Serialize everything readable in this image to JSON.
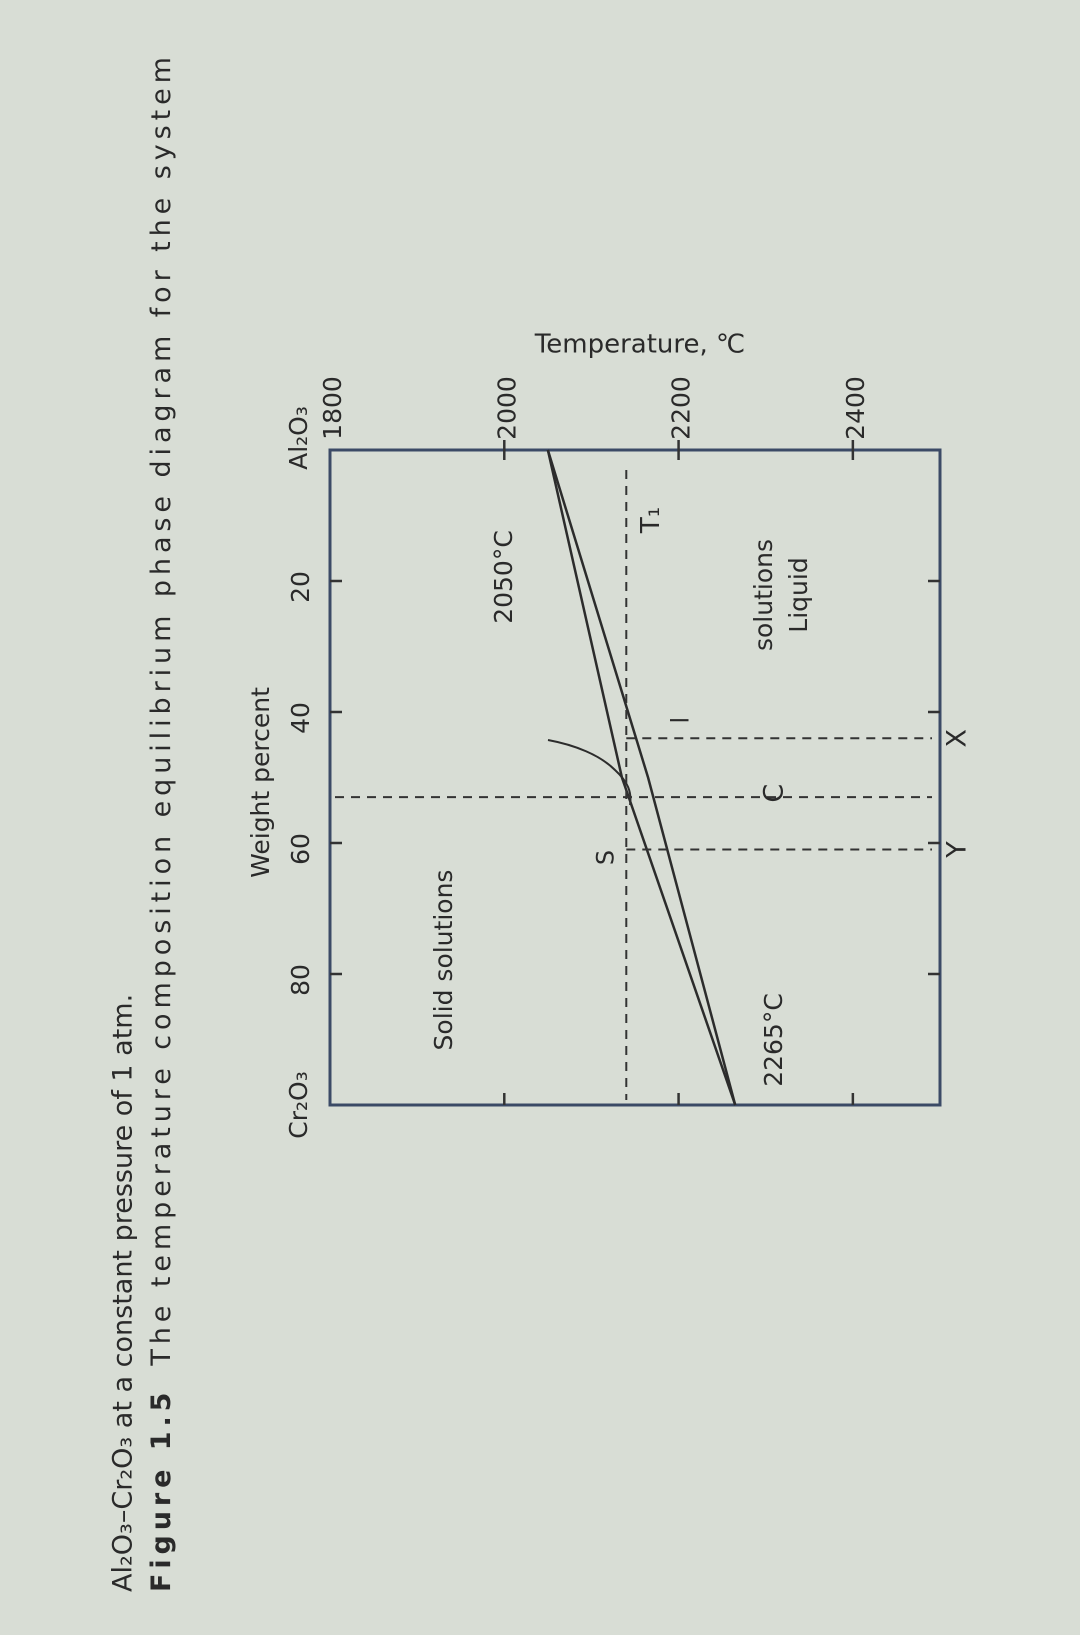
{
  "chart_data": {
    "type": "line",
    "title_label": "Figure 1.5",
    "title": [
      "The temperature composition equilibrium phase diagram for the system",
      "Al₂O₃–Cr₂O₃ at a constant pressure of 1 atm."
    ],
    "xlabel": "Weight percent",
    "ylabel": "Temperature, ℃",
    "xlim": [
      0,
      100
    ],
    "ylim": [
      1800,
      2500
    ],
    "xticks": [
      20,
      40,
      60,
      80
    ],
    "yticks": [
      1800,
      2000,
      2200,
      2400
    ],
    "x_end_labels": [
      "Al₂O₃",
      "Cr₂O₃"
    ],
    "series": [
      {
        "color": "#2c2c2c",
        "x": [
          0,
          50,
          100
        ],
        "values": [
          2050,
          2165,
          2265
        ]
      },
      {
        "color": "#2c2c2c",
        "x": [
          0,
          50,
          100
        ],
        "values": [
          2050,
          2135,
          2265
        ]
      }
    ],
    "hlines": [
      {
        "label": "T₁",
        "value": 2140
      }
    ],
    "vlines": [
      {
        "label": "X",
        "value": 44
      },
      {
        "label": "C",
        "value": 53
      },
      {
        "label": "Y",
        "value": 61
      }
    ],
    "point_labels": [
      "l",
      "S"
    ],
    "annotations": [
      "Liquid",
      "solutions",
      "Solid solutions",
      "2050°C",
      "2265°C"
    ]
  }
}
